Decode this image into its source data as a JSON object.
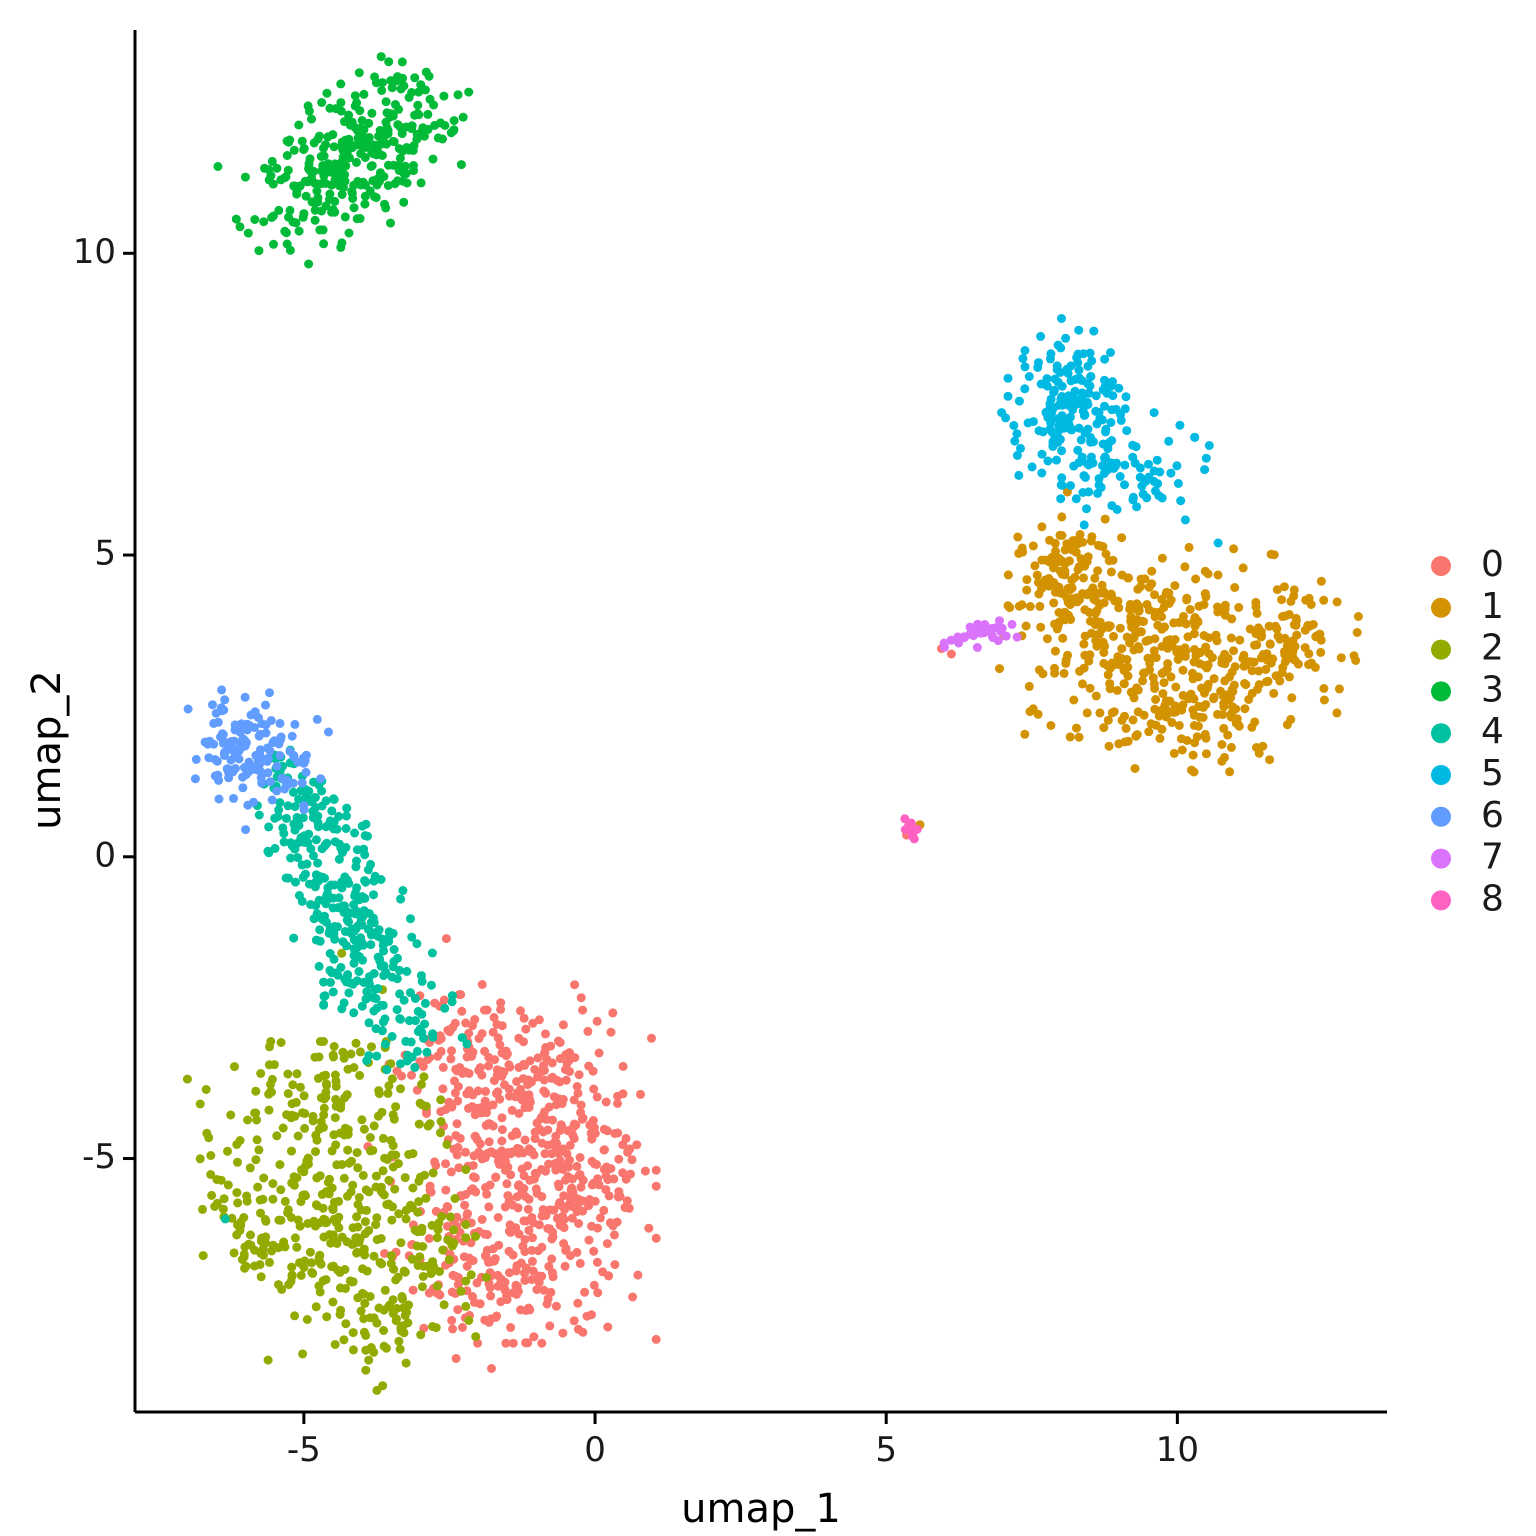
{
  "figure": {
    "background": "#FFFFFF",
    "axis_color": "#000000"
  },
  "chart_data": {
    "type": "scatter",
    "title": "",
    "xlabel": "umap_1",
    "ylabel": "umap_2",
    "xlim": [
      -7.9,
      13.6
    ],
    "ylim": [
      -9.2,
      13.7
    ],
    "x_ticks": [
      -5,
      0,
      5,
      10
    ],
    "y_ticks": [
      -5,
      0,
      5,
      10
    ],
    "grid": false,
    "legend_position": "right",
    "legend_title": "",
    "point_radius_px": 4.5,
    "legend_swatch_radius_px": 10,
    "seed": 42,
    "clusters": [
      {
        "label": "0",
        "color": "#F8766D",
        "blobs": [
          [
            -1.35,
            -5.3,
            1.0,
            1.15,
            0,
            400
          ],
          [
            -0.35,
            -5.0,
            0.55,
            1.2,
            0,
            110
          ],
          [
            -2.35,
            -2.95,
            0.45,
            0.6,
            -35,
            60
          ],
          [
            -1.6,
            -3.7,
            0.7,
            0.45,
            0,
            50
          ],
          [
            -1.7,
            -7.4,
            0.8,
            0.45,
            0,
            60
          ]
        ],
        "outliers": [
          [
            5.95,
            3.45
          ],
          [
            6.12,
            3.36
          ],
          [
            5.35,
            0.36
          ],
          [
            -3.9,
            -4.8
          ]
        ]
      },
      {
        "label": "1",
        "color": "#D39200",
        "blobs": [
          [
            10.0,
            3.3,
            1.25,
            0.8,
            -8,
            310
          ],
          [
            8.2,
            4.8,
            0.45,
            0.5,
            20,
            90
          ],
          [
            8.8,
            3.9,
            0.7,
            0.6,
            0,
            80
          ],
          [
            12.0,
            3.6,
            0.5,
            0.45,
            15,
            60
          ],
          [
            9.9,
            2.4,
            0.95,
            0.3,
            -5,
            60
          ]
        ],
        "outliers": [
          [
            5.58,
            0.53
          ]
        ]
      },
      {
        "label": "2",
        "color": "#93AA00",
        "blobs": [
          [
            -4.5,
            -5.7,
            0.95,
            1.1,
            0,
            330
          ],
          [
            -4.6,
            -3.9,
            1.0,
            0.5,
            0,
            60
          ],
          [
            -3.6,
            -7.7,
            0.45,
            0.5,
            0,
            40
          ],
          [
            -6.0,
            -6.2,
            0.35,
            0.5,
            40,
            25
          ],
          [
            -3.0,
            -6.9,
            0.5,
            0.55,
            0,
            40
          ]
        ],
        "outliers": [
          [
            -4.35,
            -1.6
          ],
          [
            -3.65,
            -2.2
          ],
          [
            -2.3,
            -7.2
          ],
          [
            -2.05,
            -7.95
          ]
        ]
      },
      {
        "label": "3",
        "color": "#00BA38",
        "blobs": [
          [
            -4.1,
            11.55,
            0.95,
            0.5,
            33,
            330
          ]
        ],
        "outliers": []
      },
      {
        "label": "4",
        "color": "#00C19F",
        "blobs": [
          [
            -4.95,
            0.6,
            0.55,
            0.35,
            -55,
            60
          ],
          [
            -4.5,
            -0.4,
            0.6,
            0.4,
            -60,
            80
          ],
          [
            -4.1,
            -1.4,
            0.6,
            0.42,
            -60,
            90
          ],
          [
            -3.6,
            -2.5,
            0.7,
            0.5,
            -50,
            90
          ],
          [
            -5.25,
            1.2,
            0.5,
            0.3,
            -40,
            30
          ]
        ],
        "outliers": [
          [
            -6.35,
            -6.0
          ],
          [
            -2.45,
            -2.3
          ],
          [
            -2.2,
            -3.1
          ],
          [
            -5.6,
            1.62
          ]
        ]
      },
      {
        "label": "5",
        "color": "#00B9E3",
        "blobs": [
          [
            8.1,
            7.6,
            0.42,
            0.55,
            0,
            140
          ],
          [
            8.6,
            6.6,
            0.75,
            0.5,
            -30,
            80
          ],
          [
            9.4,
            6.35,
            0.6,
            0.4,
            -25,
            25
          ]
        ],
        "outliers": [
          [
            10.7,
            5.2
          ],
          [
            9.3,
            5.8
          ],
          [
            8.4,
            5.5
          ],
          [
            10.3,
            6.95
          ]
        ]
      },
      {
        "label": "6",
        "color": "#619CFF",
        "blobs": [
          [
            -5.9,
            1.75,
            0.52,
            0.42,
            -10,
            145
          ]
        ],
        "outliers": [
          [
            -5.0,
            0.85
          ],
          [
            -6.0,
            0.45
          ]
        ]
      },
      {
        "label": "7",
        "color": "#DB72FB",
        "blobs": [
          [
            6.62,
            3.7,
            0.28,
            0.09,
            12,
            34
          ]
        ],
        "outliers": [
          [
            7.16,
            3.85
          ],
          [
            7.25,
            3.64
          ]
        ]
      },
      {
        "label": "8",
        "color": "#FF61C3",
        "blobs": [
          [
            5.42,
            0.5,
            0.09,
            0.13,
            0,
            9
          ]
        ],
        "outliers": []
      }
    ]
  }
}
